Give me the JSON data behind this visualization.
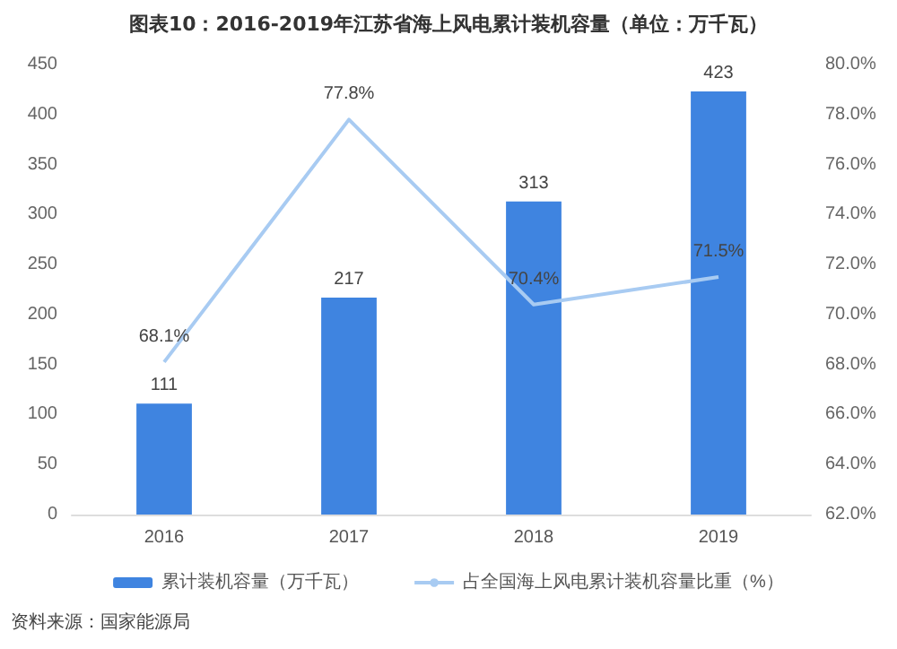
{
  "chart_data": {
    "type": "bar",
    "title": "图表10：2016-2019年江苏省海上风电累计装机容量（单位：万千瓦）",
    "categories": [
      "2016",
      "2017",
      "2018",
      "2019"
    ],
    "series": [
      {
        "name": "累计装机容量（万千瓦）",
        "color": "#3f84e0",
        "values": [
          111,
          217,
          313,
          423
        ],
        "value_labels": [
          "111",
          "217",
          "313",
          "423"
        ]
      },
      {
        "name": "占全国海上风电累计装机容量比重（%）",
        "type": "line",
        "axis": "y2",
        "color": "#a8cbf2",
        "values": [
          68.1,
          77.8,
          70.4,
          71.5
        ],
        "value_labels": [
          "68.1%",
          "77.8%",
          "70.4%",
          "71.5%"
        ]
      }
    ],
    "ylim": [
      0,
      450
    ],
    "yticks": [
      0,
      50,
      100,
      150,
      200,
      250,
      300,
      350,
      400,
      450
    ],
    "y2lim": [
      62,
      80
    ],
    "y2ticks": [
      {
        "value": 62,
        "label": "62.0%"
      },
      {
        "value": 64,
        "label": "64.0%"
      },
      {
        "value": 66,
        "label": "66.0%"
      },
      {
        "value": 68,
        "label": "68.0%"
      },
      {
        "value": 70,
        "label": "70.0%"
      },
      {
        "value": 72,
        "label": "72.0%"
      },
      {
        "value": 74,
        "label": "74.0%"
      },
      {
        "value": 76,
        "label": "76.0%"
      },
      {
        "value": 78,
        "label": "78.0%"
      },
      {
        "value": 80,
        "label": "80.0%"
      }
    ],
    "grid": false,
    "legend": "bottom",
    "marker": "none",
    "line_style": "solid",
    "annotations": [
      "资料来源：国家能源局"
    ]
  }
}
